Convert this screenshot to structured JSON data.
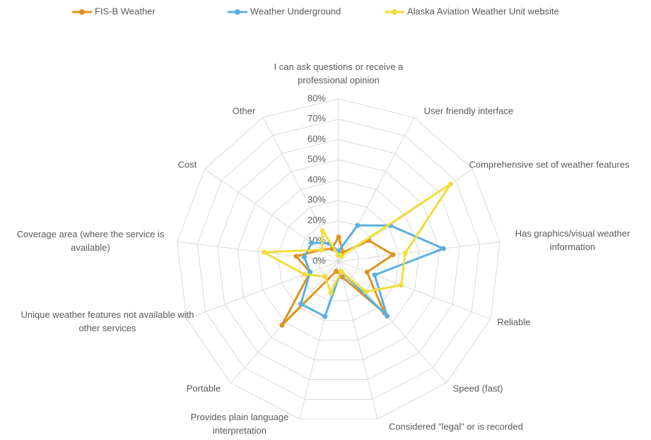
{
  "chart_data": {
    "type": "radar",
    "categories": [
      "I can ask questions or receive a professional opinion",
      "User friendly interface",
      "Comprehensive set of weather features",
      "Has graphics/visual weather information",
      "Reliable",
      "Speed (fast)",
      "Considered \"legal\" or is recorded",
      "Provides plain language interpretation",
      "Portable",
      "Unique weather features not available with other services",
      "Coverage area (where the service is available)",
      "Cost",
      "Other"
    ],
    "series": [
      {
        "name": "FIS-B Weather",
        "color": "#dd9420",
        "values": [
          12,
          5,
          18,
          27,
          15,
          34,
          8,
          5,
          42,
          15,
          21,
          10,
          7
        ]
      },
      {
        "name": "Weather Underground",
        "color": "#5aafe2",
        "values": [
          5,
          20,
          31,
          52,
          19,
          36,
          5,
          28,
          28,
          15,
          17,
          16,
          10
        ]
      },
      {
        "name": "Alaska Aviation Weather Unit website",
        "color": "#f2dd3a",
        "values": [
          3,
          3,
          67,
          33,
          33,
          20,
          5,
          16,
          10,
          18,
          37,
          10,
          17
        ]
      }
    ],
    "ylim": [
      0,
      80
    ],
    "yticks": [
      {
        "value": 0,
        "label": "0%"
      },
      {
        "value": 10,
        "label": "10%"
      },
      {
        "value": 20,
        "label": "20%"
      },
      {
        "value": 30,
        "label": "30%"
      },
      {
        "value": 40,
        "label": "40%"
      },
      {
        "value": 50,
        "label": "50%"
      },
      {
        "value": 60,
        "label": "60%"
      },
      {
        "value": 70,
        "label": "70%"
      },
      {
        "value": 80,
        "label": "80%"
      }
    ],
    "grid": true,
    "legend": "top"
  }
}
